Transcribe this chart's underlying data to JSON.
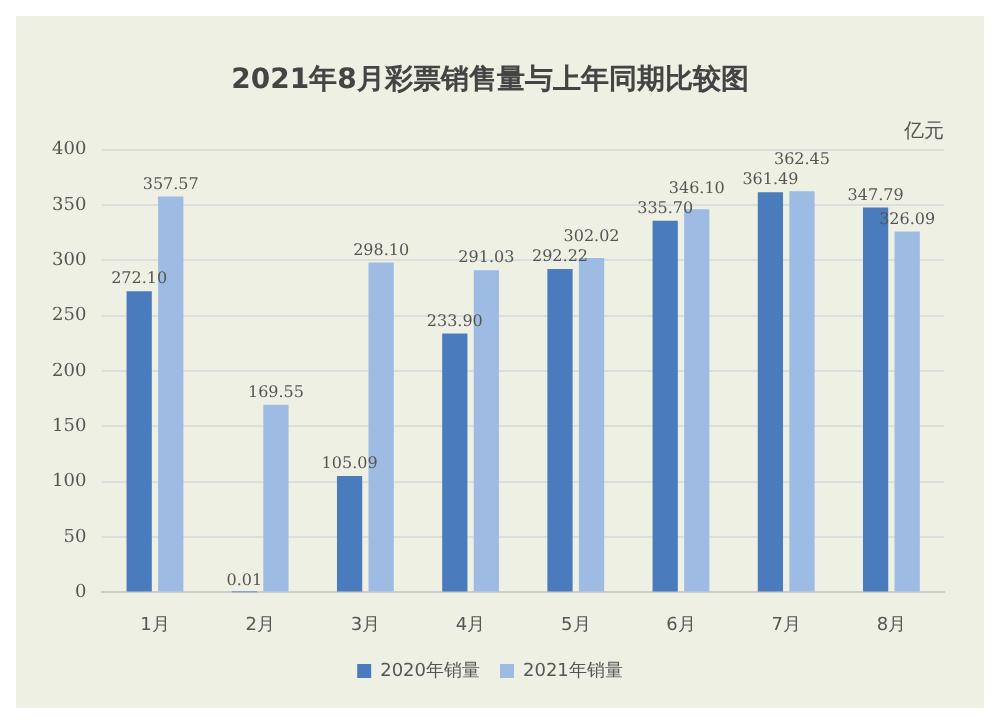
{
  "chart_data": {
    "type": "bar",
    "title": "2021年8月彩票销售量与上年同期比较图",
    "categories": [
      "1月",
      "2月",
      "3月",
      "4月",
      "5月",
      "6月",
      "7月",
      "8月"
    ],
    "series": [
      {
        "name": "2020年销量",
        "color": "#4a7bbd",
        "values": [
          272.1,
          0.01,
          105.09,
          233.9,
          292.22,
          335.7,
          361.49,
          347.79
        ],
        "value_labels": [
          "272.10",
          "0.01",
          "105.09",
          "233.90",
          "292.22",
          "335.70",
          "361.49",
          "347.79"
        ]
      },
      {
        "name": "2021年销量",
        "color": "#9dbbe3",
        "values": [
          357.57,
          169.55,
          298.1,
          291.03,
          302.02,
          346.1,
          362.45,
          326.09
        ],
        "value_labels": [
          "357.57",
          "169.55",
          "298.10",
          "291.03",
          "302.02",
          "346.10",
          "362.45",
          "326.09"
        ]
      }
    ],
    "ylim": [
      0,
      400
    ],
    "yticks": [
      0,
      50,
      100,
      150,
      200,
      250,
      300,
      350,
      400
    ],
    "grid": "y",
    "legend": "bottom",
    "annotations": [
      "亿元"
    ]
  }
}
